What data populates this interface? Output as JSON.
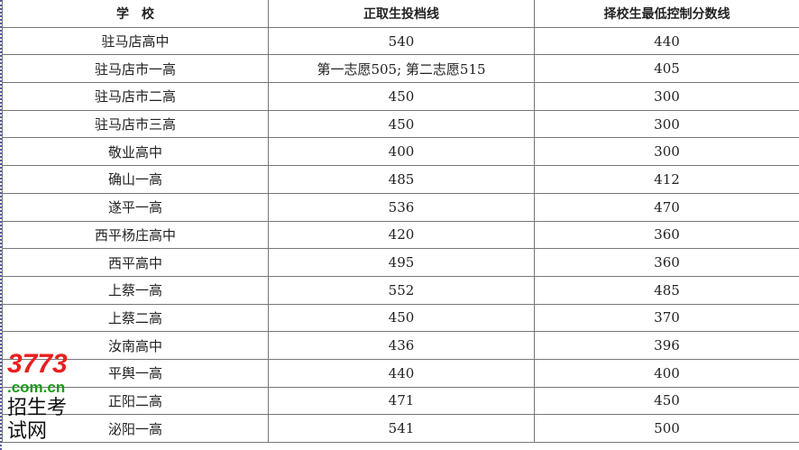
{
  "headers": [
    "学　校",
    "正取生投档线",
    "择校生最低控制分数线"
  ],
  "rows": [
    [
      "驻马店高中",
      "540",
      "440"
    ],
    [
      "驻马店市一高",
      "第一志愿505; 第二志愿515",
      "405"
    ],
    [
      "驻马店市二高",
      "450",
      "300"
    ],
    [
      "驻马店市三高",
      "450",
      "300"
    ],
    [
      "敬业高中",
      "400",
      "300"
    ],
    [
      "确山一高",
      "485",
      "412"
    ],
    [
      "遂平一高",
      "536",
      "470"
    ],
    [
      "西平杨庄高中",
      "420",
      "360"
    ],
    [
      "西平高中",
      "495",
      "360"
    ],
    [
      "上蔡一高",
      "552",
      "485"
    ],
    [
      "上蔡二高",
      "450",
      "370"
    ],
    [
      "汝南高中",
      "436",
      "396"
    ],
    [
      "平舆一高",
      "440",
      "400"
    ],
    [
      "正阳二高",
      "471",
      "450"
    ],
    [
      "泌阳一高",
      "541",
      "500"
    ]
  ],
  "watermark": {
    "number": "3773",
    "domain": ".com.cn",
    "subtitle": "招生考试网"
  }
}
